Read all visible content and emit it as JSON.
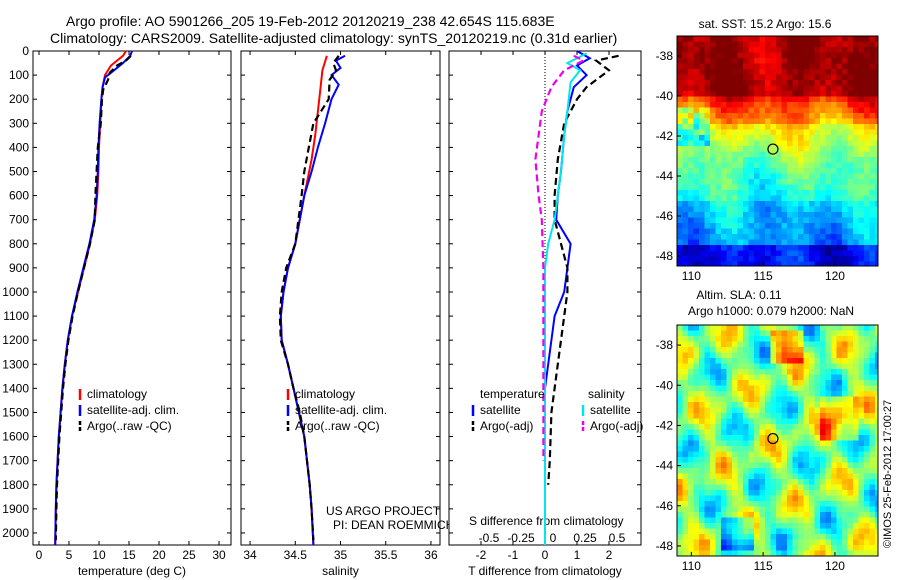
{
  "header": {
    "line1": "Argo profile: AO 5901266_205 19-Feb-2012 20120219_238 42.654S 115.683E",
    "line2": "Climatology: CARS2009. Satellite-adjusted climatology: synTS_20120219.nc (0.31d earlier)"
  },
  "depth_ticks": [
    0,
    100,
    200,
    300,
    400,
    500,
    600,
    700,
    800,
    900,
    1000,
    1100,
    1200,
    1300,
    1400,
    1500,
    1600,
    1700,
    1800,
    1900,
    2000
  ],
  "colors": {
    "climatology": "#ff0000",
    "satellite": "#0000ff",
    "argo": "#000000",
    "salinity_sat": "#00e5ee",
    "salinity_argo": "#ee00ee"
  },
  "chart_data": [
    {
      "type": "line",
      "xlabel": "temperature (deg C)",
      "xticks": [
        0,
        5,
        10,
        15,
        20,
        25,
        30
      ],
      "xlim": [
        -1,
        32
      ],
      "ylim": [
        0,
        2050
      ],
      "legend": [
        "climatology",
        "satellite-adj. clim.",
        "Argo(..raw -QC)"
      ],
      "series": [
        {
          "name": "climatology",
          "color": "#ff0000",
          "points": [
            [
              14.5,
              0
            ],
            [
              14,
              20
            ],
            [
              12,
              60
            ],
            [
              11,
              100
            ],
            [
              10.6,
              150
            ],
            [
              10.4,
              200
            ],
            [
              10.2,
              300
            ],
            [
              10,
              400
            ],
            [
              9.9,
              500
            ],
            [
              9.7,
              600
            ],
            [
              9.3,
              700
            ],
            [
              8.5,
              800
            ],
            [
              7.5,
              900
            ],
            [
              6.5,
              1000
            ],
            [
              5.5,
              1100
            ],
            [
              4.8,
              1200
            ],
            [
              4.3,
              1300
            ],
            [
              3.9,
              1400
            ],
            [
              3.6,
              1500
            ],
            [
              3.3,
              1600
            ],
            [
              3.1,
              1700
            ],
            [
              2.9,
              1800
            ],
            [
              2.8,
              1900
            ],
            [
              2.7,
              2050
            ]
          ]
        },
        {
          "name": "satellite-adj. clim.",
          "color": "#0000ff",
          "dashed": false,
          "points": [
            [
              15.5,
              0
            ],
            [
              15.2,
              20
            ],
            [
              14,
              50
            ],
            [
              12.5,
              80
            ],
            [
              11,
              110
            ],
            [
              10.6,
              150
            ],
            [
              10.4,
              200
            ],
            [
              10.1,
              300
            ],
            [
              9.9,
              400
            ],
            [
              9.8,
              500
            ],
            [
              9.6,
              600
            ],
            [
              9.2,
              700
            ],
            [
              8.4,
              800
            ],
            [
              7.4,
              900
            ],
            [
              6.4,
              1000
            ],
            [
              5.5,
              1100
            ],
            [
              4.8,
              1200
            ],
            [
              4.3,
              1300
            ],
            [
              3.9,
              1400
            ],
            [
              3.6,
              1500
            ],
            [
              3.3,
              1600
            ],
            [
              3.1,
              1700
            ],
            [
              2.9,
              1800
            ],
            [
              2.8,
              1900
            ],
            [
              2.7,
              2050
            ]
          ]
        },
        {
          "name": "Argo(..raw -QC)",
          "color": "#000000",
          "dashed": true,
          "points": [
            [
              15.3,
              20
            ],
            [
              14.5,
              40
            ],
            [
              13,
              60
            ],
            [
              11.8,
              90
            ],
            [
              11.5,
              120
            ],
            [
              10.7,
              160
            ],
            [
              10.5,
              200
            ],
            [
              10.3,
              300
            ],
            [
              9.8,
              400
            ],
            [
              9.6,
              500
            ],
            [
              9.4,
              600
            ],
            [
              9.3,
              700
            ],
            [
              8.5,
              800
            ],
            [
              7.5,
              900
            ],
            [
              6.5,
              1000
            ],
            [
              5.6,
              1100
            ],
            [
              4.9,
              1200
            ],
            [
              4.4,
              1300
            ],
            [
              4,
              1400
            ],
            [
              3.7,
              1500
            ],
            [
              3.4,
              1600
            ],
            [
              3.2,
              1700
            ],
            [
              3,
              1800
            ],
            [
              2.9,
              1900
            ],
            [
              2.8,
              2030
            ]
          ]
        }
      ]
    },
    {
      "type": "line",
      "xlabel": "salinity",
      "xticks": [
        34,
        34.5,
        35,
        35.5,
        36
      ],
      "xlim": [
        33.9,
        36.1
      ],
      "ylim": [
        0,
        2050
      ],
      "legend": [
        "climatology",
        "satellite-adj. clim.",
        "Argo(..raw -QC)"
      ],
      "annotation": [
        "US ARGO PROJECT",
        "PI: DEAN ROEMMICH"
      ],
      "series": [
        {
          "name": "climatology",
          "color": "#ff0000",
          "points": [
            [
              34.85,
              20
            ],
            [
              34.8,
              80
            ],
            [
              34.78,
              150
            ],
            [
              34.75,
              250
            ],
            [
              34.72,
              350
            ],
            [
              34.68,
              450
            ],
            [
              34.6,
              600
            ],
            [
              34.5,
              800
            ],
            [
              34.42,
              900
            ],
            [
              34.37,
              1000
            ],
            [
              34.34,
              1100
            ],
            [
              34.35,
              1200
            ],
            [
              34.42,
              1300
            ],
            [
              34.48,
              1400
            ],
            [
              34.54,
              1500
            ],
            [
              34.6,
              1600
            ],
            [
              34.63,
              1700
            ],
            [
              34.66,
              1800
            ],
            [
              34.68,
              1900
            ],
            [
              34.7,
              2050
            ]
          ]
        },
        {
          "name": "satellite-adj. clim.",
          "color": "#0000ff",
          "dashed": false,
          "points": [
            [
              35.05,
              20
            ],
            [
              34.95,
              40
            ],
            [
              35,
              70
            ],
            [
              34.9,
              100
            ],
            [
              34.98,
              140
            ],
            [
              34.9,
              200
            ],
            [
              34.83,
              300
            ],
            [
              34.75,
              400
            ],
            [
              34.68,
              500
            ],
            [
              34.6,
              600
            ],
            [
              34.5,
              800
            ],
            [
              34.42,
              900
            ],
            [
              34.37,
              1000
            ],
            [
              34.34,
              1100
            ],
            [
              34.35,
              1200
            ],
            [
              34.42,
              1300
            ],
            [
              34.48,
              1400
            ],
            [
              34.54,
              1500
            ],
            [
              34.6,
              1600
            ],
            [
              34.63,
              1700
            ],
            [
              34.66,
              1800
            ],
            [
              34.68,
              1900
            ],
            [
              34.7,
              2050
            ]
          ]
        },
        {
          "name": "Argo(..raw -QC)",
          "color": "#000000",
          "dashed": true,
          "points": [
            [
              34.98,
              20
            ],
            [
              34.92,
              50
            ],
            [
              34.95,
              80
            ],
            [
              34.88,
              120
            ],
            [
              34.87,
              200
            ],
            [
              34.7,
              300
            ],
            [
              34.65,
              400
            ],
            [
              34.6,
              500
            ],
            [
              34.57,
              600
            ],
            [
              34.5,
              800
            ],
            [
              34.4,
              900
            ],
            [
              34.35,
              1000
            ],
            [
              34.33,
              1100
            ],
            [
              34.34,
              1200
            ],
            [
              34.42,
              1300
            ],
            [
              34.48,
              1400
            ],
            [
              34.55,
              1500
            ],
            [
              34.6,
              1600
            ],
            [
              34.63,
              1700
            ],
            [
              34.66,
              1800
            ],
            [
              34.68,
              1900
            ],
            [
              34.7,
              2030
            ]
          ]
        }
      ]
    },
    {
      "type": "line",
      "xlabel": "T difference from climatology",
      "x2label": "S difference from climatology",
      "xticks": [
        -2,
        -1,
        0,
        1,
        2
      ],
      "x2ticks": [
        -0.5,
        -0.25,
        0,
        0.25,
        0.5
      ],
      "xlim": [
        -3,
        3
      ],
      "ylim": [
        0,
        2050
      ],
      "legend_title_left": "temperature",
      "legend_title_right": "salinity",
      "legend": [
        "satellite",
        "Argo(-adj)",
        "satellite",
        "Argo(-adj)"
      ],
      "series": [
        {
          "name": "T satellite",
          "color": "#0000ff",
          "dashed": false,
          "points": [
            [
              1,
              0
            ],
            [
              1.4,
              30
            ],
            [
              1,
              60
            ],
            [
              1.3,
              100
            ],
            [
              0.9,
              150
            ],
            [
              0.7,
              250
            ],
            [
              0.6,
              350
            ],
            [
              0.5,
              500
            ],
            [
              0.4,
              600
            ],
            [
              0.35,
              700
            ],
            [
              0.8,
              800
            ],
            [
              0.7,
              900
            ],
            [
              0.6,
              1000
            ],
            [
              0.3,
              1100
            ],
            [
              0.2,
              1200
            ],
            [
              0.1,
              1300
            ],
            [
              0,
              1400
            ],
            [
              0,
              2050
            ]
          ]
        },
        {
          "name": "T Argo(-adj)",
          "color": "#000000",
          "dashed": true,
          "points": [
            [
              2.3,
              20
            ],
            [
              1.6,
              40
            ],
            [
              2,
              80
            ],
            [
              1.3,
              150
            ],
            [
              1,
              200
            ],
            [
              0.6,
              300
            ],
            [
              0.4,
              450
            ],
            [
              0.3,
              600
            ],
            [
              0.3,
              700
            ],
            [
              0.5,
              800
            ],
            [
              0.7,
              900
            ],
            [
              0.7,
              1000
            ],
            [
              0.6,
              1100
            ],
            [
              0.5,
              1200
            ],
            [
              0.4,
              1300
            ],
            [
              0.3,
              1400
            ],
            [
              0.2,
              1500
            ],
            [
              0.15,
              1700
            ],
            [
              0.1,
              1800
            ]
          ]
        },
        {
          "name": "S satellite",
          "color": "#00e5ee",
          "dashed": false,
          "points": [
            [
              1.3,
              10
            ],
            [
              0.7,
              50
            ],
            [
              1.1,
              80
            ],
            [
              0.8,
              130
            ],
            [
              0.7,
              250
            ],
            [
              0.6,
              350
            ],
            [
              0.5,
              500
            ],
            [
              0.4,
              600
            ],
            [
              0.3,
              700
            ],
            [
              0.1,
              800
            ],
            [
              0,
              900
            ],
            [
              0,
              2050
            ]
          ]
        },
        {
          "name": "S Argo(-adj)",
          "color": "#ee00ee",
          "dashed": true,
          "points": [
            [
              0.9,
              20
            ],
            [
              1.2,
              40
            ],
            [
              0.6,
              80
            ],
            [
              0.2,
              150
            ],
            [
              -0.1,
              250
            ],
            [
              -0.2,
              350
            ],
            [
              -0.3,
              450
            ],
            [
              -0.2,
              600
            ],
            [
              -0.1,
              700
            ],
            [
              -0.05,
              900
            ],
            [
              -0.05,
              1700
            ]
          ]
        }
      ]
    },
    {
      "type": "heatmap",
      "title": "sat. SST: 15.2 Argo: 15.6",
      "xticks": [
        110,
        115,
        120
      ],
      "yticks": [
        -38,
        -40,
        -42,
        -44,
        -46,
        -48
      ],
      "xlim": [
        109,
        123
      ],
      "ylim": [
        -48.5,
        -37
      ]
    },
    {
      "type": "heatmap",
      "title_lines": [
        "Altim. SLA: 0.11",
        "Argo h1000: 0.079 h2000: NaN"
      ],
      "xticks": [
        110,
        115,
        120
      ],
      "yticks": [
        -38,
        -40,
        -42,
        -44,
        -46,
        -48
      ],
      "xlim": [
        109,
        123
      ],
      "ylim": [
        -48.5,
        -37
      ],
      "side_text": "©IMOS 25-Feb-2012 17:00:27"
    }
  ],
  "marker": {
    "lon": 115.683,
    "lat": -42.654
  }
}
